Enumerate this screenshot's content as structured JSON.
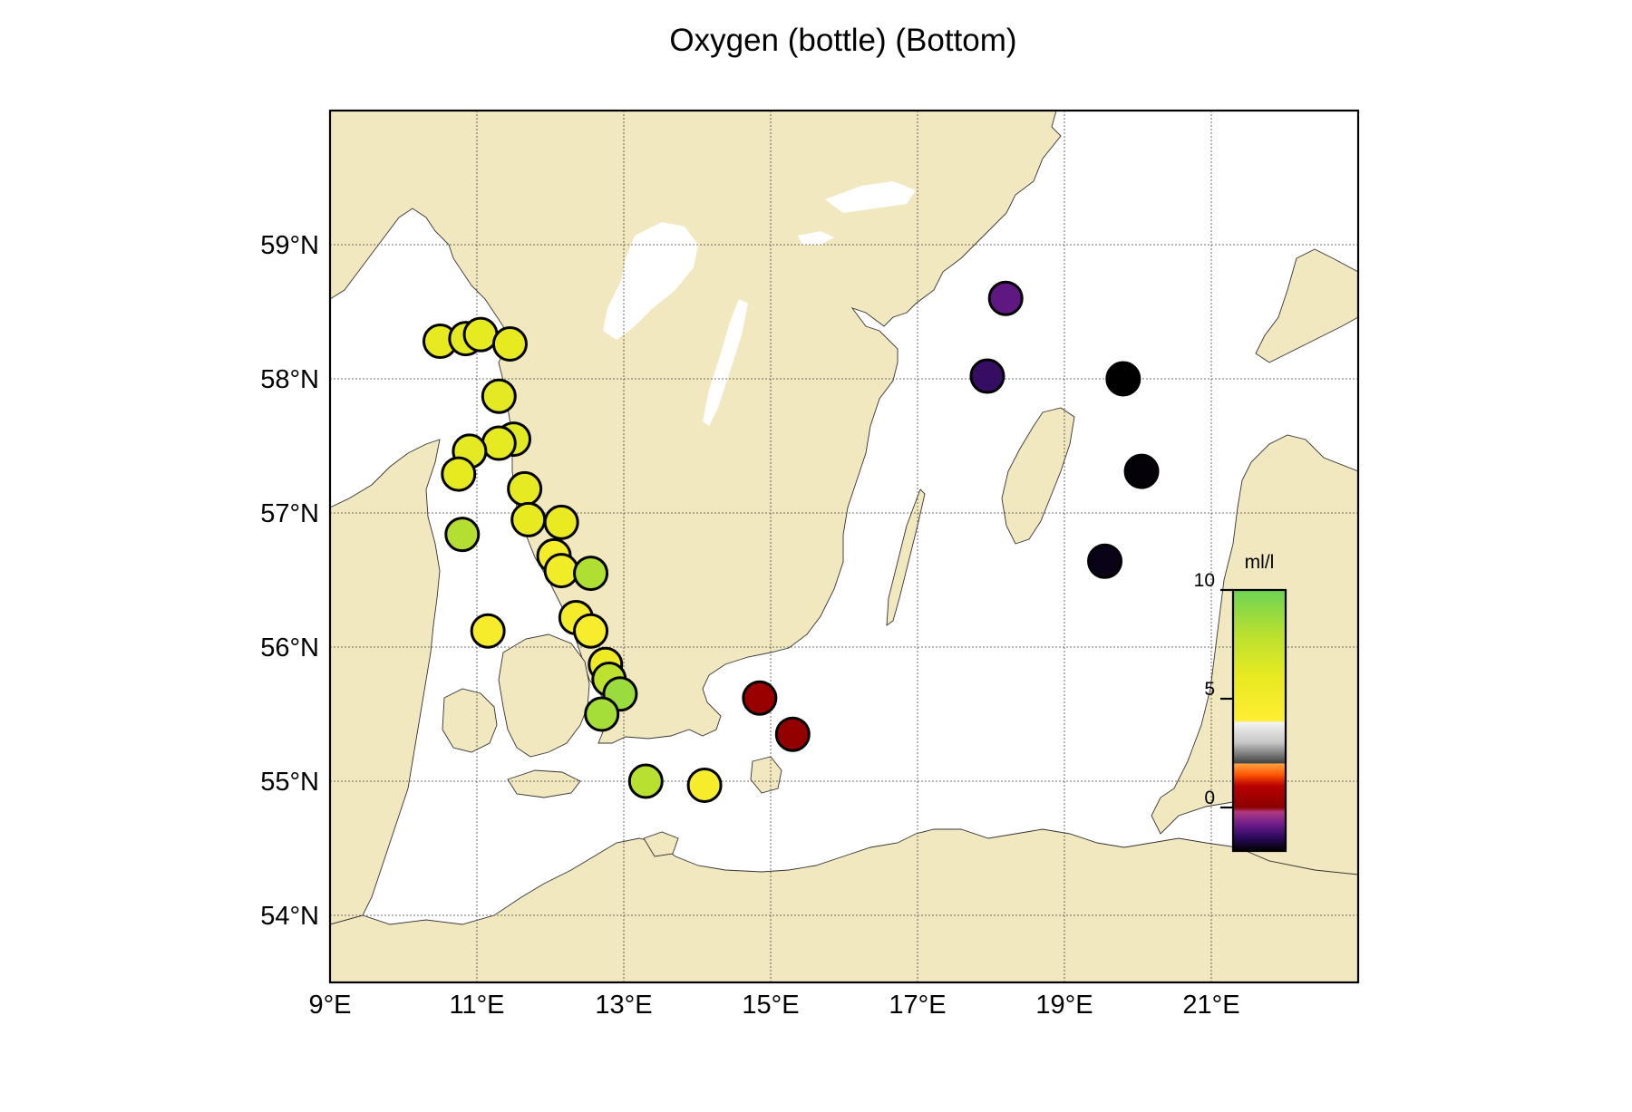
{
  "title": "Oxygen (bottle) (Bottom)",
  "map": {
    "lon_range": [
      9.0,
      23.0
    ],
    "lat_range": [
      53.5,
      60.0
    ],
    "lon_ticks": [
      {
        "value": 9,
        "label": "9°E"
      },
      {
        "value": 11,
        "label": "11°E"
      },
      {
        "value": 13,
        "label": "13°E"
      },
      {
        "value": 15,
        "label": "15°E"
      },
      {
        "value": 17,
        "label": "17°E"
      },
      {
        "value": 19,
        "label": "19°E"
      },
      {
        "value": 21,
        "label": "21°E"
      }
    ],
    "lat_ticks": [
      {
        "value": 54,
        "label": "54°N"
      },
      {
        "value": 55,
        "label": "55°N"
      },
      {
        "value": 56,
        "label": "56°N"
      },
      {
        "value": 57,
        "label": "57°N"
      },
      {
        "value": 58,
        "label": "58°N"
      },
      {
        "value": 59,
        "label": "59°N"
      }
    ],
    "grid": true,
    "land_color": "#f2e8c0",
    "sea_color": "#ffffff"
  },
  "colorbar": {
    "unit_label": "ml/l",
    "range": [
      -2,
      10
    ],
    "ticks": [
      {
        "value": 0,
        "label": "0"
      },
      {
        "value": 5,
        "label": "5"
      },
      {
        "value": 10,
        "label": "10"
      }
    ],
    "stops": [
      {
        "value": -2.0,
        "color": "#000000"
      },
      {
        "value": -1.4,
        "color": "#2a0a5a"
      },
      {
        "value": -0.8,
        "color": "#6a1a8a"
      },
      {
        "value": -0.2,
        "color": "#b03a80"
      },
      {
        "value": 0.0,
        "color": "#8b0000"
      },
      {
        "value": 1.0,
        "color": "#b80000"
      },
      {
        "value": 1.5,
        "color": "#ff5500"
      },
      {
        "value": 2.0,
        "color": "#ffa040"
      },
      {
        "value": 2.05,
        "color": "#444444"
      },
      {
        "value": 3.0,
        "color": "#c8c8c8"
      },
      {
        "value": 3.9,
        "color": "#f2f2f2"
      },
      {
        "value": 4.0,
        "color": "#ffee33"
      },
      {
        "value": 6.0,
        "color": "#e8ea20"
      },
      {
        "value": 8.0,
        "color": "#b8e030"
      },
      {
        "value": 10.0,
        "color": "#6cd454"
      }
    ]
  },
  "chart_data": {
    "type": "scatter",
    "title": "Oxygen (bottle) (Bottom)",
    "x_label": "",
    "y_label": "",
    "unit": "ml/l",
    "points": [
      {
        "lon": 10.5,
        "lat": 58.28,
        "value": 6.0
      },
      {
        "lon": 10.85,
        "lat": 58.3,
        "value": 6.2
      },
      {
        "lon": 11.05,
        "lat": 58.33,
        "value": 6.1
      },
      {
        "lon": 11.45,
        "lat": 58.26,
        "value": 6.0
      },
      {
        "lon": 11.3,
        "lat": 57.87,
        "value": 6.2
      },
      {
        "lon": 11.5,
        "lat": 57.55,
        "value": 6.3
      },
      {
        "lon": 11.3,
        "lat": 57.52,
        "value": 6.1
      },
      {
        "lon": 10.9,
        "lat": 57.46,
        "value": 6.2
      },
      {
        "lon": 10.75,
        "lat": 57.29,
        "value": 6.0
      },
      {
        "lon": 11.65,
        "lat": 57.18,
        "value": 6.1
      },
      {
        "lon": 10.8,
        "lat": 56.84,
        "value": 8.1
      },
      {
        "lon": 11.7,
        "lat": 56.95,
        "value": 6.0
      },
      {
        "lon": 12.15,
        "lat": 56.93,
        "value": 5.8
      },
      {
        "lon": 12.05,
        "lat": 56.68,
        "value": 4.9
      },
      {
        "lon": 12.15,
        "lat": 56.57,
        "value": 5.2
      },
      {
        "lon": 12.55,
        "lat": 56.55,
        "value": 8.2
      },
      {
        "lon": 12.35,
        "lat": 56.22,
        "value": 5.0
      },
      {
        "lon": 12.55,
        "lat": 56.12,
        "value": 4.6
      },
      {
        "lon": 11.15,
        "lat": 56.12,
        "value": 4.8
      },
      {
        "lon": 12.75,
        "lat": 55.87,
        "value": 5.5
      },
      {
        "lon": 12.8,
        "lat": 55.76,
        "value": 7.8
      },
      {
        "lon": 12.95,
        "lat": 55.65,
        "value": 8.8
      },
      {
        "lon": 12.7,
        "lat": 55.5,
        "value": 8.5
      },
      {
        "lon": 13.3,
        "lat": 55.0,
        "value": 8.0
      },
      {
        "lon": 14.1,
        "lat": 54.97,
        "value": 4.8
      },
      {
        "lon": 14.85,
        "lat": 55.62,
        "value": 0.3
      },
      {
        "lon": 15.3,
        "lat": 55.35,
        "value": 0.2
      },
      {
        "lon": 18.2,
        "lat": 58.6,
        "value": -0.9
      },
      {
        "lon": 17.95,
        "lat": 58.02,
        "value": -1.3
      },
      {
        "lon": 19.8,
        "lat": 58.0,
        "value": -2.0
      },
      {
        "lon": 20.05,
        "lat": 57.31,
        "value": -1.95
      },
      {
        "lon": 19.55,
        "lat": 56.64,
        "value": -1.85
      }
    ]
  }
}
